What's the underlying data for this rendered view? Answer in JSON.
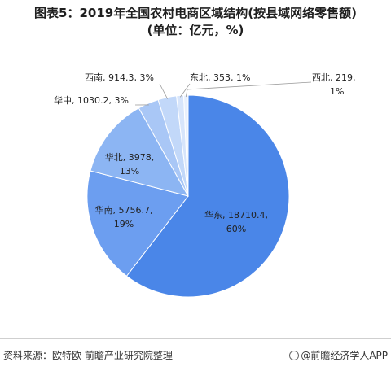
{
  "title_line1": "图表5：2019年全国农村电商区域结构(按县域网络零售额)",
  "title_line2": "(单位：亿元，%)",
  "chart_data": {
    "type": "pie",
    "start_angle": "12 o'clock, clockwise",
    "slices": [
      {
        "name": "华东",
        "value": 18710.4,
        "pct": "60%",
        "color": "#4a86e8"
      },
      {
        "name": "华南",
        "value": 5756.7,
        "pct": "19%",
        "color": "#6c9ef0"
      },
      {
        "name": "华北",
        "value": 3978,
        "pct": "13%",
        "color": "#8cb5f3"
      },
      {
        "name": "华中",
        "value": 1030.2,
        "pct": "3%",
        "color": "#a9c7f6"
      },
      {
        "name": "西南",
        "value": 914.3,
        "pct": "3%",
        "color": "#c2d8f9"
      },
      {
        "name": "东北",
        "value": 353,
        "pct": "1%",
        "color": "#d7e5fb"
      },
      {
        "name": "西北",
        "value": 219,
        "pct": "1%",
        "color": "#e8f0fd"
      }
    ],
    "labels": {
      "华东": [
        "华东, 18710.4,",
        "60%"
      ],
      "华南": [
        "华南, 5756.7,",
        "19%"
      ],
      "华北": [
        "华北, 3978,",
        "13%"
      ],
      "华中": [
        "华中, 1030.2, 3%"
      ],
      "西南": [
        "西南, 914.3, 3%"
      ],
      "东北": [
        "东北, 353, 1%"
      ],
      "西北": [
        "西北, 219,",
        "1%"
      ]
    }
  },
  "footer": {
    "source": "资料来源：欧特欧 前瞻产业研究院整理",
    "brand": "@前瞻经济学人APP"
  }
}
